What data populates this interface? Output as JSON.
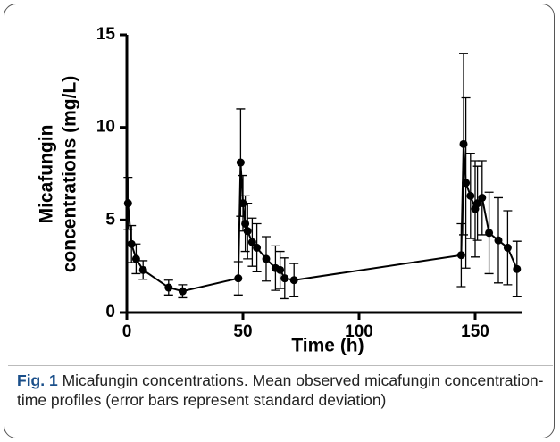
{
  "chart_data": {
    "type": "line",
    "x_label": "Time (h)",
    "y_label": [
      "Micafungin",
      "concentrations (mg/L)"
    ],
    "xlim": [
      0,
      170
    ],
    "ylim": [
      0,
      15
    ],
    "xticks": [
      0,
      50,
      100,
      150
    ],
    "yticks": [
      0,
      5,
      10,
      15
    ],
    "grid": false,
    "x": [
      0.5,
      2,
      4,
      7,
      18,
      24,
      48,
      49,
      50,
      51,
      52,
      54,
      56,
      60,
      64,
      66,
      68,
      72,
      144,
      145,
      146,
      148,
      150,
      151,
      153,
      156,
      160,
      164,
      168
    ],
    "series": [
      {
        "color": "#000000",
        "values": [
          5.9,
          3.7,
          2.9,
          2.3,
          1.35,
          1.15,
          1.85,
          8.1,
          5.9,
          4.8,
          4.4,
          3.8,
          3.5,
          2.9,
          2.4,
          2.3,
          1.85,
          1.75,
          3.1,
          9.1,
          7.0,
          6.3,
          5.6,
          5.9,
          6.2,
          4.3,
          3.9,
          3.5,
          2.35
        ],
        "errors": [
          1.4,
          1.0,
          0.8,
          0.5,
          0.4,
          0.35,
          0.9,
          2.9,
          1.5,
          1.5,
          1.5,
          1.3,
          1.3,
          1.2,
          1.2,
          1.0,
          1.1,
          0.9,
          1.7,
          4.9,
          4.6,
          2.3,
          2.6,
          2.0,
          2.0,
          2.2,
          2.3,
          2.0,
          1.5
        ]
      }
    ]
  },
  "caption": {
    "label": "Fig. 1",
    "text": "Micafungin concentrations. Mean observed micafungin concentration-time profiles (error bars represent standard deviation)"
  }
}
